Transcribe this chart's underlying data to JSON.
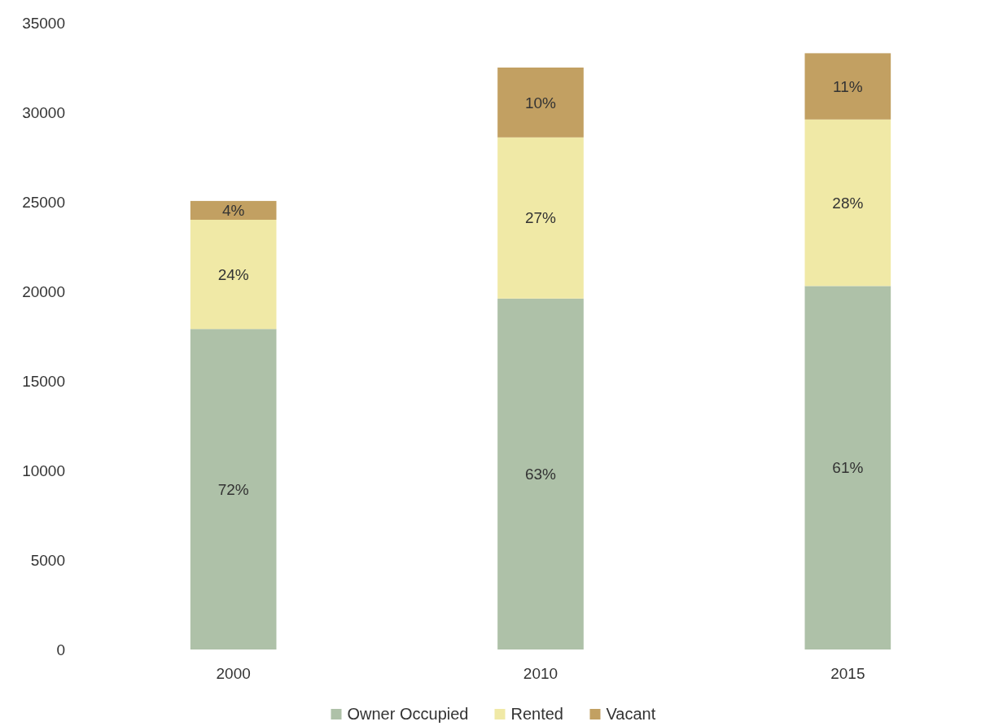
{
  "chart_data": {
    "type": "bar",
    "stacked": true,
    "categories": [
      "2000",
      "2010",
      "2015"
    ],
    "series": [
      {
        "name": "Owner Occupied",
        "color": "#aec1a8",
        "values": [
          17900,
          19600,
          20300
        ]
      },
      {
        "name": "Rented",
        "color": "#f0e9a6",
        "values": [
          6100,
          9000,
          9300
        ]
      },
      {
        "name": "Vacant",
        "color": "#c2a062",
        "values": [
          1050,
          3900,
          3700
        ]
      }
    ],
    "annotations": [
      "72%",
      "24%",
      "4%",
      "63%",
      "27%",
      "10%",
      "61%",
      "28%",
      "11%"
    ],
    "ylim": [
      0,
      35000
    ],
    "yticks": [
      0,
      5000,
      10000,
      15000,
      20000,
      25000,
      30000,
      35000
    ],
    "grid": false,
    "legend": "bottom"
  }
}
